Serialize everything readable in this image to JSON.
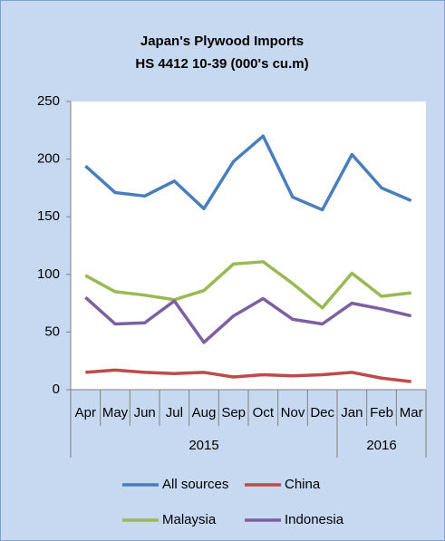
{
  "chart_data": {
    "type": "line",
    "title": [
      "Japan's Plywood Imports",
      "HS 4412 10-39  (000's cu.m)"
    ],
    "categories": [
      "Apr",
      "May",
      "Jun",
      "Jul",
      "Aug",
      "Sep",
      "Oct",
      "Nov",
      "Dec",
      "Jan",
      "Feb",
      "Mar"
    ],
    "groups": [
      {
        "label": "2015",
        "count": 9
      },
      {
        "label": "2016",
        "count": 3
      }
    ],
    "series": [
      {
        "name": "All sources",
        "color": "#4a7ebb",
        "values": [
          194,
          171,
          168,
          181,
          157,
          198,
          220,
          167,
          156,
          204,
          175,
          164
        ]
      },
      {
        "name": "China",
        "color": "#be4b48",
        "values": [
          15,
          17,
          15,
          14,
          15,
          11,
          13,
          12,
          13,
          15,
          10,
          7
        ]
      },
      {
        "name": "Malaysia",
        "color": "#98b954",
        "values": [
          99,
          85,
          82,
          78,
          86,
          109,
          111,
          92,
          71,
          101,
          81,
          84
        ]
      },
      {
        "name": "Indonesia",
        "color": "#7d60a0",
        "values": [
          80,
          57,
          58,
          77,
          41,
          64,
          79,
          61,
          57,
          75,
          70,
          64
        ]
      }
    ],
    "ylim": [
      0,
      250
    ],
    "yticks": [
      0,
      50,
      100,
      150,
      200,
      250
    ],
    "grid": false
  }
}
